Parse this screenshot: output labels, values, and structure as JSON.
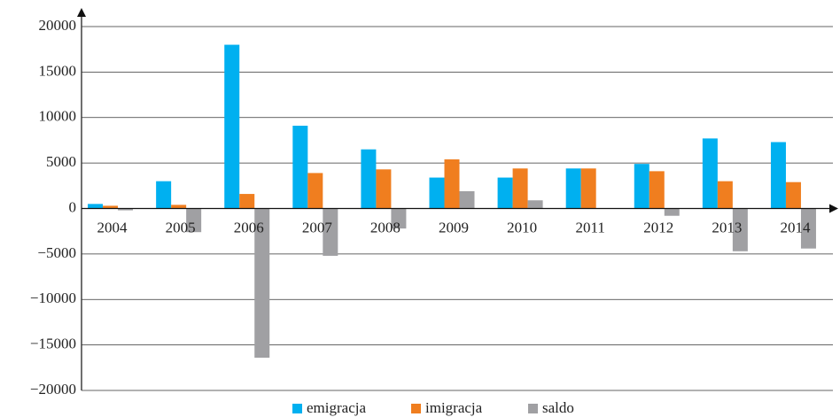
{
  "chart_data": {
    "type": "bar",
    "categories": [
      "2004",
      "2005",
      "2006",
      "2007",
      "2008",
      "2009",
      "2010",
      "2011",
      "2012",
      "2013",
      "2014"
    ],
    "series": [
      {
        "name": "emigracja",
        "color": "#00b0f0",
        "values": [
          500,
          3000,
          18000,
          9100,
          6500,
          3400,
          3400,
          4400,
          4900,
          7700,
          7300
        ]
      },
      {
        "name": "imigracja",
        "color": "#f07e1f",
        "values": [
          300,
          400,
          1600,
          3900,
          4300,
          5400,
          4400,
          4400,
          4100,
          3000,
          2900
        ]
      },
      {
        "name": "saldo",
        "color": "#a0a0a3",
        "values": [
          -200,
          -2600,
          -16400,
          -5200,
          -2200,
          1900,
          900,
          0,
          -800,
          -4700,
          -4400
        ]
      }
    ],
    "ylim": [
      -20000,
      20000
    ],
    "yticks": [
      {
        "value": -20000,
        "label": "−20000"
      },
      {
        "value": -15000,
        "label": "−15000"
      },
      {
        "value": -10000,
        "label": "−10000"
      },
      {
        "value": -5000,
        "label": "−5000"
      },
      0,
      5000,
      10000,
      15000,
      20000
    ],
    "grid": true
  }
}
